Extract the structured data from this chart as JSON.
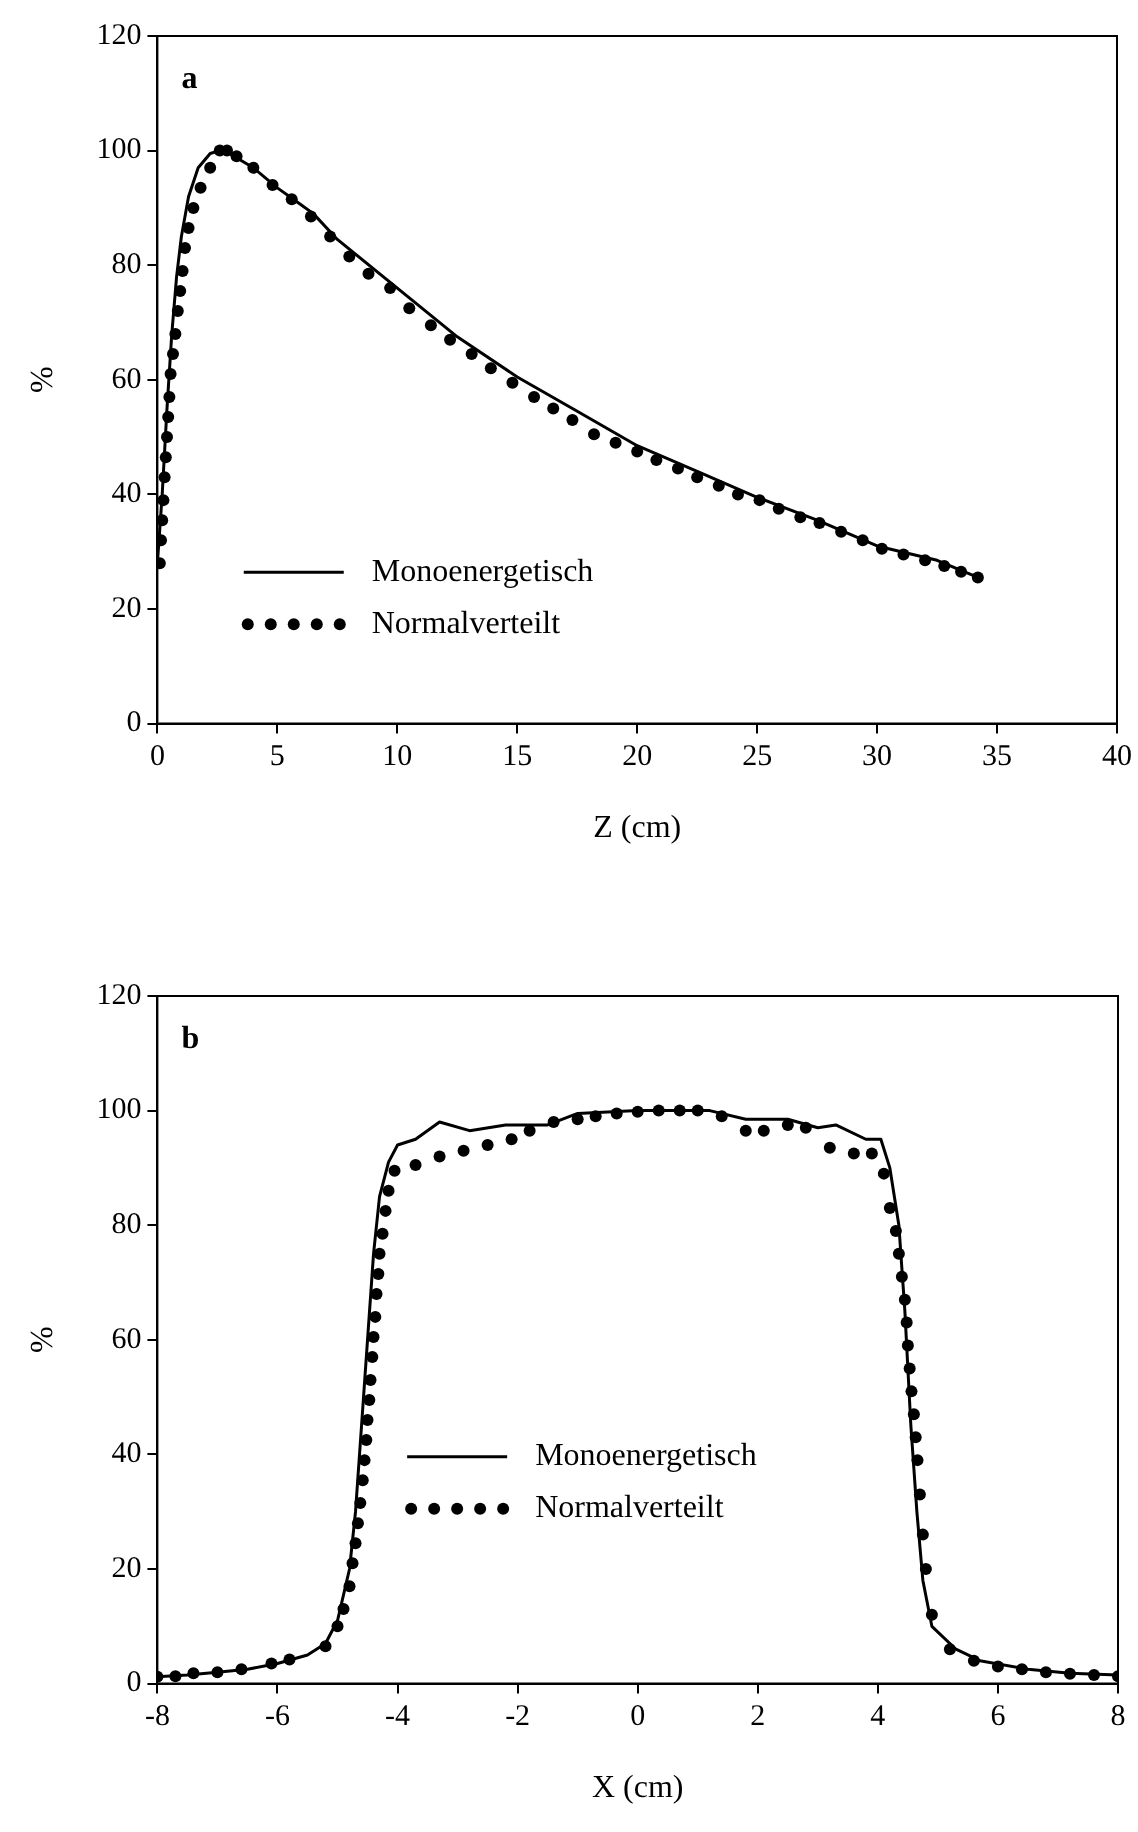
{
  "chart_data": [
    {
      "type": "line",
      "xlabel": "Z (cm)",
      "ylabel": "%",
      "annotations": [
        "a"
      ],
      "xlim": [
        0,
        40
      ],
      "xticks": [
        0,
        5,
        10,
        15,
        20,
        25,
        30,
        35,
        40
      ],
      "ylim": [
        0,
        120
      ],
      "yticks": [
        0,
        20,
        40,
        60,
        80,
        100,
        120
      ],
      "grid": false,
      "legend": "bottom left",
      "series": [
        {
          "name": "Monoenergetisch",
          "color": "#000000",
          "marker": "none",
          "line_style": "solid",
          "x": [
            0,
            0.2,
            0.4,
            0.6,
            0.8,
            1,
            1.3,
            1.7,
            2.2,
            2.6,
            3,
            4,
            5,
            6,
            6.5,
            7.5,
            10,
            12.5,
            15,
            17.5,
            20,
            22.5,
            25,
            27.5,
            30,
            32.5,
            34.2
          ],
          "values": [
            28,
            40,
            55,
            68,
            78,
            85,
            92,
            97,
            99.5,
            100,
            99.5,
            97,
            93.5,
            90.5,
            89,
            84.5,
            76,
            67.5,
            60.5,
            54.5,
            48.5,
            44,
            39.5,
            35.5,
            31,
            28.5,
            25.5
          ]
        },
        {
          "name": "Normalverteilt",
          "type": "scatter",
          "color": "#000000",
          "marker": "circle",
          "x": [
            0.1,
            0.15,
            0.2,
            0.25,
            0.3,
            0.35,
            0.4,
            0.45,
            0.5,
            0.55,
            0.65,
            0.75,
            0.85,
            0.95,
            1.05,
            1.15,
            1.3,
            1.5,
            1.8,
            2.2,
            2.6,
            2.9,
            3.3,
            4,
            4.8,
            5.6,
            6.4,
            7.2,
            8,
            8.8,
            9.7,
            10.5,
            11.4,
            12.2,
            13.1,
            13.9,
            14.8,
            15.7,
            16.5,
            17.3,
            18.2,
            19.1,
            20,
            20.8,
            21.7,
            22.5,
            23.4,
            24.2,
            25.1,
            25.9,
            26.8,
            27.6,
            28.5,
            29.4,
            30.2,
            31.1,
            32,
            32.8,
            33.5,
            34.2
          ],
          "values": [
            28,
            32,
            35.5,
            39,
            43,
            46.5,
            50,
            53.5,
            57,
            61,
            64.5,
            68,
            72,
            75.5,
            79,
            83,
            86.5,
            90,
            93.5,
            97,
            100,
            100,
            99,
            97,
            94,
            91.5,
            88.5,
            85,
            81.5,
            78.5,
            76,
            72.5,
            69.5,
            67,
            64.5,
            62,
            59.5,
            57,
            55,
            53,
            50.5,
            49,
            47.5,
            46,
            44.5,
            43,
            41.5,
            40,
            39,
            37.5,
            36,
            35,
            33.5,
            32,
            30.5,
            29.5,
            28.5,
            27.5,
            26.5,
            25.5
          ]
        }
      ]
    },
    {
      "type": "line",
      "xlabel": "X (cm)",
      "ylabel": "%",
      "annotations": [
        "b"
      ],
      "xlim": [
        -8,
        8
      ],
      "xticks": [
        -8,
        -6,
        -4,
        -2,
        0,
        2,
        4,
        6,
        8
      ],
      "ylim": [
        0,
        120
      ],
      "yticks": [
        0,
        20,
        40,
        60,
        80,
        100,
        120
      ],
      "grid": false,
      "legend": "left",
      "series": [
        {
          "name": "Monoenergetisch",
          "color": "#000000",
          "marker": "none",
          "line_style": "solid",
          "x": [
            -8,
            -7.5,
            -7,
            -6.5,
            -6,
            -5.5,
            -5.2,
            -5,
            -4.8,
            -4.7,
            -4.6,
            -4.5,
            -4.4,
            -4.3,
            -4.15,
            -4,
            -3.7,
            -3.3,
            -2.8,
            -2.2,
            -1.5,
            -1,
            0,
            1,
            1.2,
            1.8,
            2.5,
            3,
            3.3,
            3.8,
            4.05,
            4.2,
            4.35,
            4.45,
            4.55,
            4.65,
            4.75,
            4.9,
            5.3,
            5.7,
            6.5,
            7.2,
            8
          ],
          "values": [
            1.2,
            1.5,
            2,
            2.5,
            3.5,
            5,
            7,
            11,
            20,
            30,
            45,
            60,
            75,
            85,
            91,
            94,
            95,
            98,
            96.5,
            97.5,
            97.5,
            99.5,
            100,
            100,
            100,
            98.5,
            98.5,
            97,
            97.5,
            95,
            95,
            90,
            80,
            65,
            45,
            30,
            18,
            10,
            6,
            4,
            2.5,
            1.8,
            1.5
          ]
        },
        {
          "name": "Normalverteilt",
          "type": "scatter",
          "color": "#000000",
          "marker": "circle",
          "x": [
            -8,
            -7.7,
            -7.4,
            -7,
            -6.6,
            -6.1,
            -5.8,
            -5.2,
            -5,
            -4.9,
            -4.8,
            -4.75,
            -4.7,
            -4.66,
            -4.62,
            -4.58,
            -4.55,
            -4.52,
            -4.5,
            -4.47,
            -4.45,
            -4.42,
            -4.4,
            -4.37,
            -4.35,
            -4.32,
            -4.3,
            -4.25,
            -4.2,
            -4.15,
            -4.05,
            -3.7,
            -3.3,
            -2.9,
            -2.5,
            -2.1,
            -1.8,
            -1.4,
            -1,
            -0.7,
            -0.35,
            0,
            0.35,
            0.7,
            1,
            1.4,
            1.8,
            2.1,
            2.5,
            2.8,
            3.2,
            3.6,
            3.9,
            4.1,
            4.2,
            4.3,
            4.35,
            4.4,
            4.45,
            4.48,
            4.5,
            4.53,
            4.56,
            4.6,
            4.63,
            4.66,
            4.7,
            4.75,
            4.8,
            4.9,
            5.2,
            5.6,
            6,
            6.4,
            6.8,
            7.2,
            7.6,
            8
          ],
          "values": [
            1.2,
            1.3,
            1.8,
            2,
            2.5,
            3.5,
            4.2,
            6.5,
            10,
            13,
            17,
            21,
            24.5,
            28,
            31.5,
            35.5,
            39,
            42.5,
            46,
            49.5,
            53,
            57,
            60.5,
            64,
            68,
            71.5,
            75,
            78.5,
            82.5,
            86,
            89.5,
            90.5,
            92,
            93,
            94,
            95,
            96.5,
            98,
            98.5,
            99,
            99.5,
            99.8,
            100,
            100,
            100,
            99,
            96.5,
            96.5,
            97.5,
            97,
            93.5,
            92.5,
            92.5,
            89,
            83,
            79,
            75,
            71,
            67,
            63,
            59,
            55,
            51,
            47,
            43,
            39,
            33,
            26,
            20,
            12,
            6,
            4,
            3,
            2.5,
            2,
            1.7,
            1.5,
            1.3
          ]
        }
      ]
    }
  ]
}
